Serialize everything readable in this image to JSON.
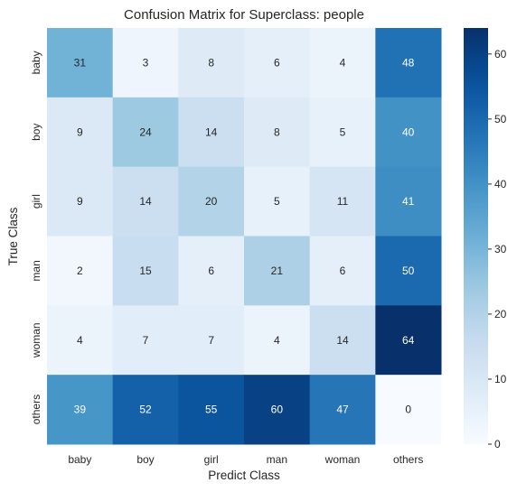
{
  "chart_data": {
    "type": "heatmap",
    "title": "Confusion Matrix for Superclass: people",
    "xlabel": "Predict Class",
    "ylabel": "True Class",
    "x_categories": [
      "baby",
      "boy",
      "girl",
      "man",
      "woman",
      "others"
    ],
    "y_categories": [
      "baby",
      "boy",
      "girl",
      "man",
      "woman",
      "others"
    ],
    "values": [
      [
        31,
        3,
        8,
        6,
        4,
        48
      ],
      [
        9,
        24,
        14,
        8,
        5,
        40
      ],
      [
        9,
        14,
        20,
        5,
        11,
        41
      ],
      [
        2,
        15,
        6,
        21,
        6,
        50
      ],
      [
        4,
        7,
        7,
        4,
        14,
        64
      ],
      [
        39,
        52,
        55,
        60,
        47,
        0
      ]
    ],
    "colormap": "Blues",
    "vmin": 0,
    "vmax": 64,
    "colorbar_ticks": [
      0,
      10,
      20,
      30,
      40,
      50,
      60
    ],
    "grid": false,
    "colorbar_position": "right"
  }
}
